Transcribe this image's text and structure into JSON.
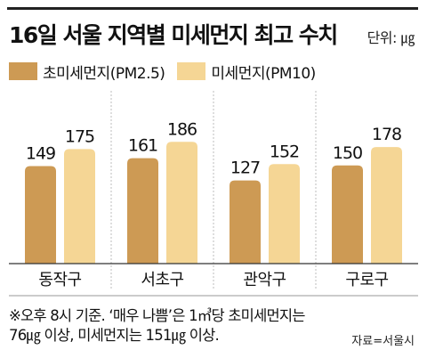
{
  "header": {
    "title": "16일 서울 지역별 미세먼지 최고 수치",
    "unit": "단위: ㎍"
  },
  "colors": {
    "pm25": "#cd9a54",
    "pm10": "#f5d695",
    "gridline": "#bdbdbd",
    "separator": "#bdbdbd",
    "axis": "#333333"
  },
  "chart_data": {
    "type": "bar",
    "categories": [
      "동작구",
      "서초구",
      "관악구",
      "구로구"
    ],
    "series": [
      {
        "name": "초미세먼지(PM2.5)",
        "values": [
          149,
          161,
          127,
          150
        ]
      },
      {
        "name": "미세먼지(PM10)",
        "values": [
          175,
          186,
          152,
          178
        ]
      }
    ],
    "data_labels": true,
    "legend": "top-left",
    "grid": false
  },
  "footnote": {
    "line1": "※오후 8시 기준. ‘매우 나쁨’은 1㎥당 초미세먼지는",
    "line2": "76㎍ 이상, 미세먼지는 151㎍ 이상."
  },
  "source": "자료=서울시"
}
